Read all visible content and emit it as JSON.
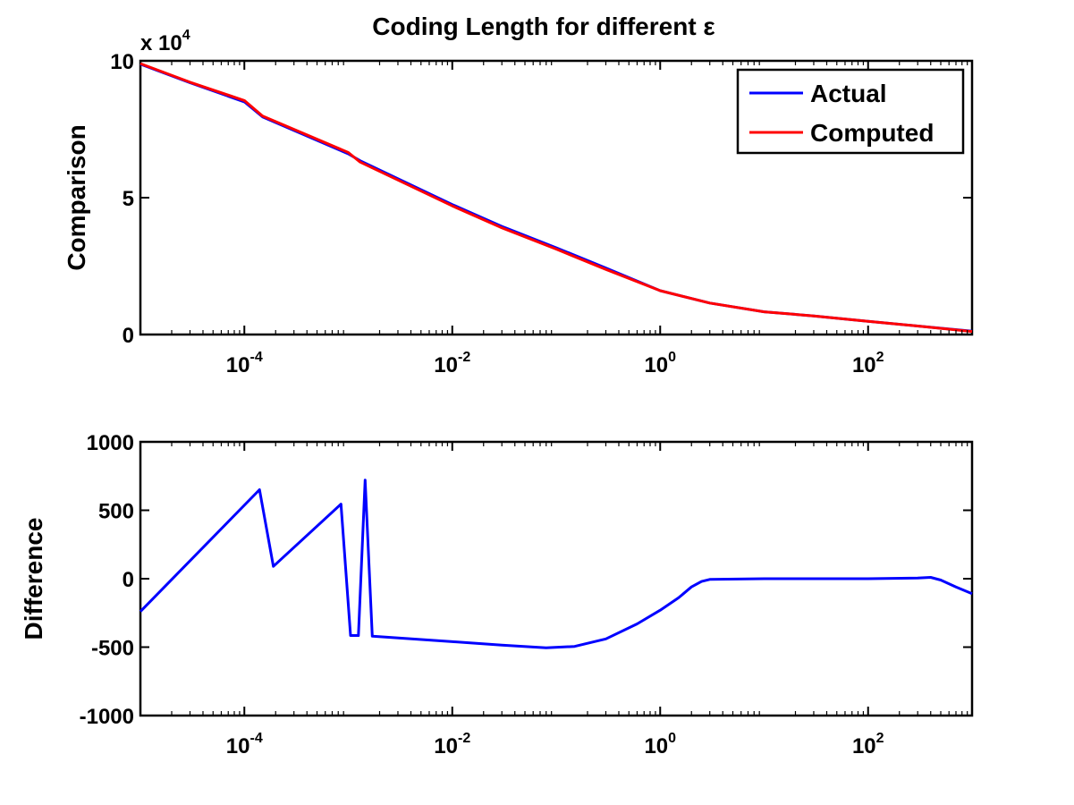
{
  "figure": {
    "title": "Coding Length for different ε"
  },
  "chart_data": [
    {
      "type": "line",
      "title": "Coding Length for different ε",
      "xlabel": "",
      "ylabel": "Comparison",
      "xscale": "log",
      "xlim": [
        1e-05,
        1000
      ],
      "ylim": [
        0,
        100000
      ],
      "y_exponent_label": "x 10",
      "y_exponent_power": "4",
      "grid": false,
      "legend_position": "top-right",
      "x_ticks": [
        {
          "value": 0.0001,
          "base": "10",
          "exp": "-4"
        },
        {
          "value": 0.01,
          "base": "10",
          "exp": "-2"
        },
        {
          "value": 1,
          "base": "10",
          "exp": "0"
        },
        {
          "value": 100,
          "base": "10",
          "exp": "2"
        }
      ],
      "y_ticks": [
        {
          "value": 0,
          "label": "0"
        },
        {
          "value": 50000,
          "label": "5"
        },
        {
          "value": 100000,
          "label": "10"
        }
      ],
      "series": [
        {
          "name": "Actual",
          "color": "#0000ff",
          "points": [
            [
              1e-05,
              98800
            ],
            [
              3e-05,
              92000
            ],
            [
              0.0001,
              85000
            ],
            [
              0.00015,
              79500
            ],
            [
              0.001,
              66000
            ],
            [
              0.0013,
              63500
            ],
            [
              0.01,
              47500
            ],
            [
              0.03,
              39500
            ],
            [
              0.1,
              31700
            ],
            [
              0.3,
              24300
            ],
            [
              1,
              16000
            ],
            [
              3,
              11500
            ],
            [
              10,
              8300
            ],
            [
              30,
              6800
            ],
            [
              100,
              4800
            ],
            [
              300,
              3100
            ],
            [
              1000,
              1200
            ]
          ]
        },
        {
          "name": "Computed",
          "color": "#ff0000",
          "points": [
            [
              1e-05,
              99000
            ],
            [
              3e-05,
              92200
            ],
            [
              0.0001,
              85500
            ],
            [
              0.00015,
              79800
            ],
            [
              0.001,
              66500
            ],
            [
              0.0013,
              63000
            ],
            [
              0.01,
              47000
            ],
            [
              0.03,
              39000
            ],
            [
              0.1,
              31200
            ],
            [
              0.3,
              23800
            ],
            [
              1,
              16000
            ],
            [
              3,
              11500
            ],
            [
              10,
              8300
            ],
            [
              30,
              6800
            ],
            [
              100,
              4800
            ],
            [
              300,
              3100
            ],
            [
              1000,
              1100
            ]
          ]
        }
      ]
    },
    {
      "type": "line",
      "title": "",
      "xlabel": "",
      "ylabel": "Difference",
      "xscale": "log",
      "xlim": [
        1e-05,
        1000
      ],
      "ylim": [
        -1000,
        1000
      ],
      "grid": false,
      "x_ticks": [
        {
          "value": 0.0001,
          "base": "10",
          "exp": "-4"
        },
        {
          "value": 0.01,
          "base": "10",
          "exp": "-2"
        },
        {
          "value": 1,
          "base": "10",
          "exp": "0"
        },
        {
          "value": 100,
          "base": "10",
          "exp": "2"
        }
      ],
      "y_ticks": [
        {
          "value": -1000,
          "label": "-1000"
        },
        {
          "value": -500,
          "label": "-500"
        },
        {
          "value": 0,
          "label": "0"
        },
        {
          "value": 500,
          "label": "500"
        },
        {
          "value": 1000,
          "label": "1000"
        }
      ],
      "series": [
        {
          "color": "#0000ff",
          "points": [
            [
              1e-05,
              -240
            ],
            [
              0.00014,
              650
            ],
            [
              0.00019,
              90
            ],
            [
              0.00085,
              545
            ],
            [
              0.00105,
              -415
            ],
            [
              0.00125,
              -415
            ],
            [
              0.00145,
              720
            ],
            [
              0.0017,
              -420
            ],
            [
              0.01,
              -460
            ],
            [
              0.03,
              -485
            ],
            [
              0.08,
              -505
            ],
            [
              0.15,
              -495
            ],
            [
              0.3,
              -440
            ],
            [
              0.6,
              -330
            ],
            [
              1,
              -230
            ],
            [
              1.5,
              -140
            ],
            [
              2,
              -60
            ],
            [
              2.5,
              -20
            ],
            [
              3,
              -5
            ],
            [
              10,
              0
            ],
            [
              100,
              0
            ],
            [
              300,
              5
            ],
            [
              400,
              10
            ],
            [
              500,
              -10
            ],
            [
              700,
              -60
            ],
            [
              1000,
              -110
            ]
          ]
        }
      ]
    }
  ]
}
